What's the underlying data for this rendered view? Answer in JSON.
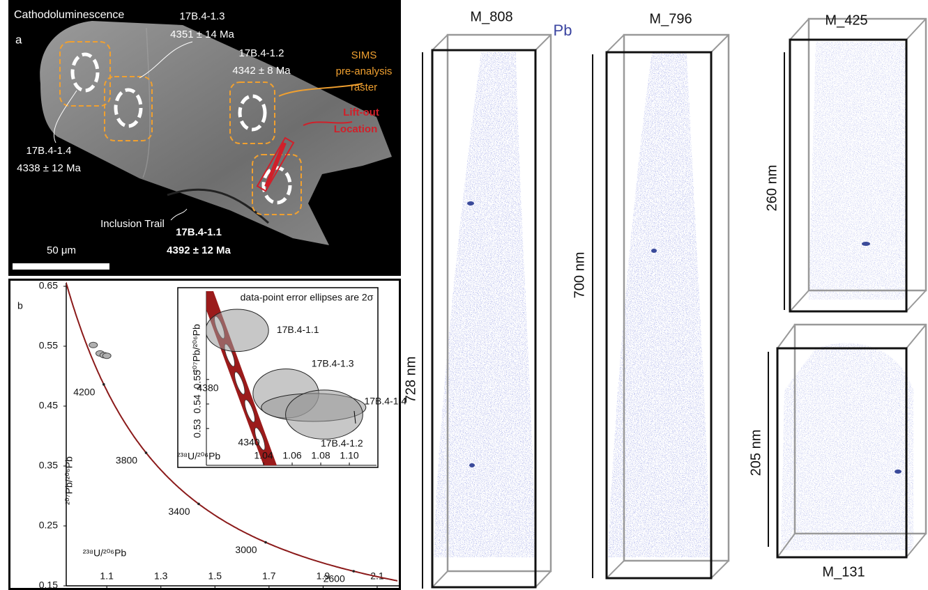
{
  "panel_a": {
    "letter": "a",
    "title": "Cathodoluminescence",
    "spots": [
      {
        "label": "17B.4-1.3",
        "age": "4351 ± 14 Ma"
      },
      {
        "label": "17B.4-1.2",
        "age": "4342 ± 8 Ma"
      },
      {
        "label": "17B.4-1.4",
        "age": "4338 ± 12 Ma"
      },
      {
        "label": "17B.4-1.1",
        "age": "4392 ± 12 Ma"
      }
    ],
    "sims_label": [
      "SIMS",
      "pre-analysis",
      "raster"
    ],
    "liftout_label": [
      "Lift-out",
      "Location"
    ],
    "inclusion_label": "Inclusion Trail",
    "scale_bar": "50 μm"
  },
  "chart_data": {
    "type": "concordia",
    "letter": "b",
    "x_label": "²³⁸U/²⁰⁶Pb",
    "y_label": "²⁰⁷Pb/²⁰⁶Pb",
    "xlim": [
      0.95,
      2.18
    ],
    "ylim": [
      0.15,
      0.65
    ],
    "xticks": [
      1.1,
      1.3,
      1.5,
      1.7,
      1.9,
      2.1
    ],
    "yticks": [
      0.15,
      0.25,
      0.35,
      0.45,
      0.55,
      0.65
    ],
    "curve_color": "#8b1a1a",
    "concordia_ages": [
      4200,
      3800,
      3400,
      3000,
      2600
    ],
    "points": {
      "x": [
        1.05,
        1.075,
        1.09,
        1.1
      ],
      "y": [
        0.552,
        0.538,
        0.535,
        0.534
      ],
      "color": "#b0b0b0"
    },
    "inset": {
      "title": "data-point error ellipses are 2σ",
      "x_label": "²³⁸U/²⁰⁶Pb",
      "y_label": "²⁰⁷Pb/²⁰⁶Pb",
      "xlim": [
        1.0,
        1.119
      ],
      "ylim": [
        0.515,
        0.586
      ],
      "xticks": [
        1.04,
        1.06,
        1.08,
        {
          "value": 1.1,
          "label": "1.10"
        }
      ],
      "yticks": [
        0.53,
        0.54,
        0.55
      ],
      "concordia_ages": [
        4380,
        4340
      ],
      "ellipses": [
        {
          "name": "17B.4-1.1",
          "x": 1.0215,
          "y": 0.57,
          "sx": 0.022,
          "sy": 0.0086
        },
        {
          "name": "17B.4-1.3",
          "x": 1.0556,
          "y": 0.5443,
          "sx": 0.023,
          "sy": 0.01
        },
        {
          "name": "17B.4-1.4",
          "x": 1.075,
          "y": 0.5386,
          "sx": 0.0366,
          "sy": 0.0057
        },
        {
          "name": "17B.4-1.2",
          "x": 1.0824,
          "y": 0.5357,
          "sx": 0.027,
          "sy": 0.01
        }
      ]
    }
  },
  "apt": {
    "element": "Pb",
    "samples": [
      {
        "name": "M_808",
        "height": "728 nm"
      },
      {
        "name": "M_796",
        "height": "700 nm"
      },
      {
        "name": "M_425",
        "height": "260 nm"
      },
      {
        "name": "M_131",
        "height": "205 nm"
      }
    ]
  }
}
